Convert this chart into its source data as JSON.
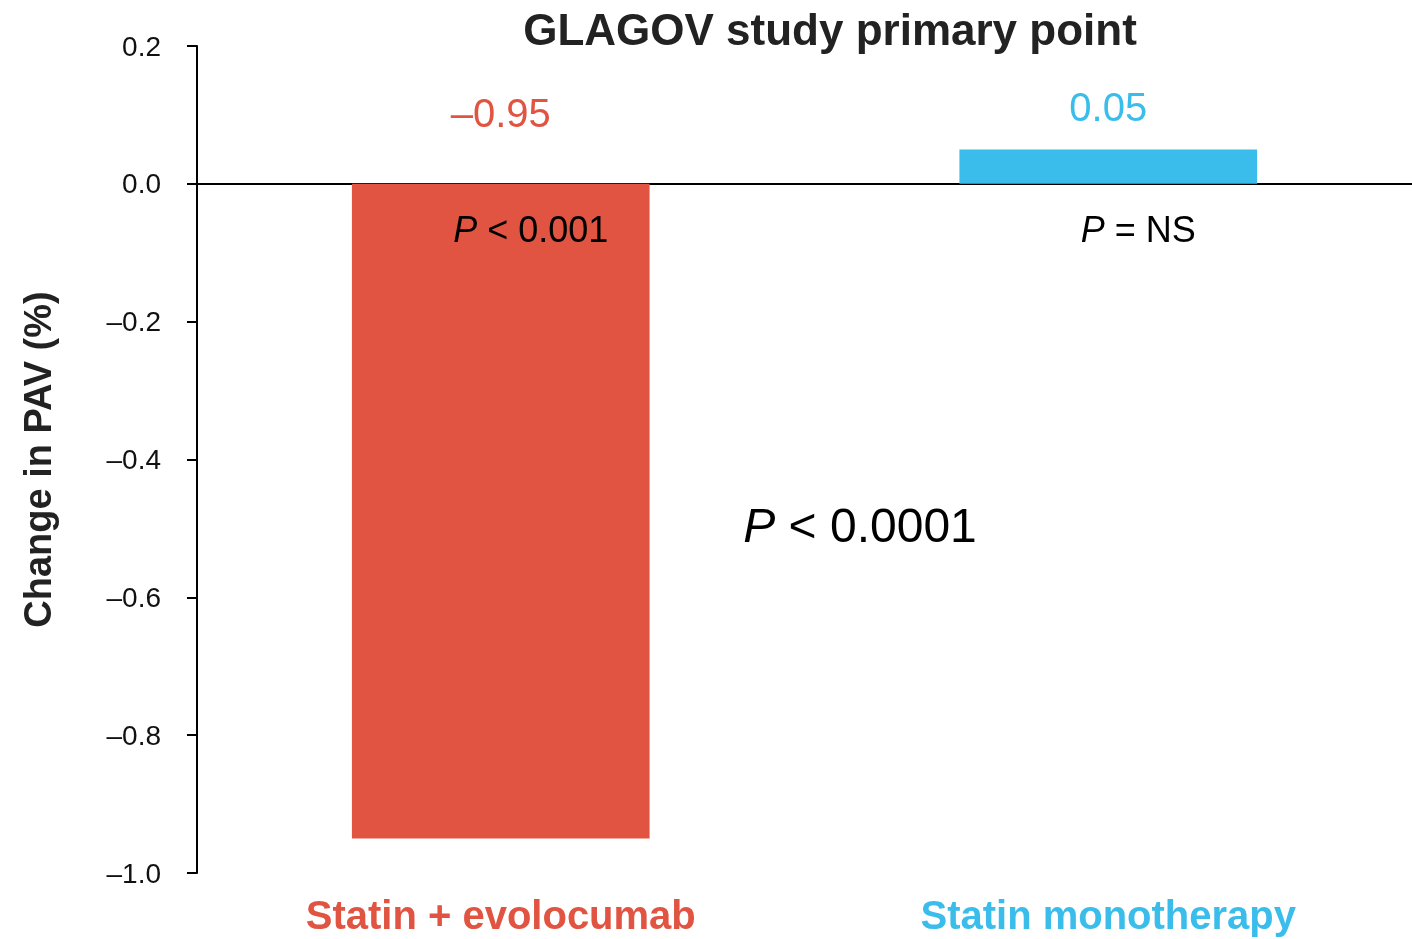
{
  "chart_data": {
    "type": "bar",
    "title": "GLAGOV study primary point",
    "ylabel": "Change in PAV (%)",
    "categories": [
      "Statin + evolocumab",
      "Statin monotherapy"
    ],
    "values": [
      -0.95,
      0.05
    ],
    "colors": [
      "#e05441",
      "#3bbdec"
    ],
    "value_labels": [
      "–0.95",
      "0.05"
    ],
    "ylim": [
      -1.0,
      0.2
    ],
    "yticks": [
      {
        "value": -1.0,
        "label": "–1.0"
      },
      {
        "value": -0.8,
        "label": "–0.8"
      },
      {
        "value": -0.6,
        "label": "–0.6"
      },
      {
        "value": -0.4,
        "label": "–0.4"
      },
      {
        "value": -0.2,
        "label": "–0.2"
      },
      {
        "value": 0,
        "label": "0.0"
      },
      {
        "value": 0.2,
        "label": "0.2"
      }
    ],
    "annotations": [
      "P < 0.001",
      "P = NS",
      "P < 0.0001"
    ]
  }
}
